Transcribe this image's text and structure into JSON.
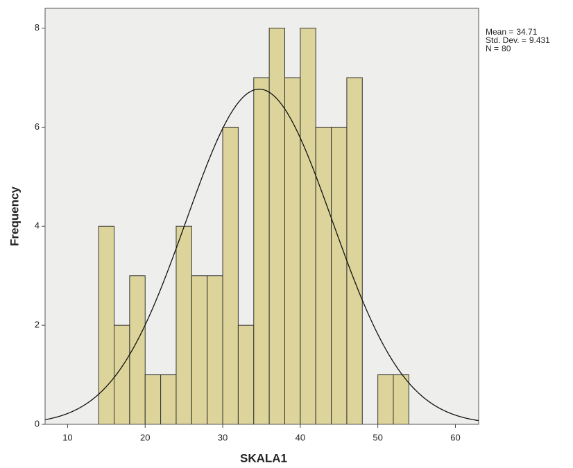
{
  "chart_data": {
    "type": "histogram",
    "x_label": "SKALA1",
    "y_label": "Frequency",
    "bins": [
      14,
      16,
      18,
      20,
      22,
      24,
      26,
      28,
      30,
      32,
      34,
      36,
      38,
      40,
      42,
      44,
      46,
      48,
      50,
      52,
      54
    ],
    "counts": [
      4,
      2,
      3,
      1,
      1,
      4,
      3,
      3,
      6,
      2,
      7,
      8,
      7,
      8,
      6,
      6,
      7,
      0,
      1,
      1
    ],
    "color": "#d8cf8c",
    "edge_color": "#333333",
    "curve_color": "#111111",
    "stats": [
      {
        "label": "Mean =",
        "value": 34.71
      },
      {
        "label": "Std. Dev. =",
        "value": 9.431
      },
      {
        "label": "N =",
        "value": 80
      }
    ],
    "xlim": [
      7.1,
      63
    ],
    "xticks": [
      10,
      20,
      30,
      40,
      50,
      60
    ],
    "ylim": [
      0,
      8.4
    ],
    "yticks": [
      0,
      2,
      4,
      6,
      8
    ]
  }
}
